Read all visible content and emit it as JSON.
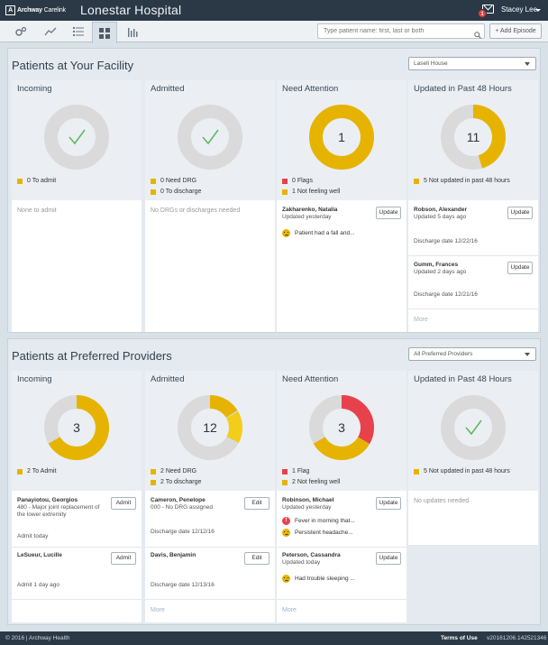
{
  "header": {
    "logo_brand": "Archway",
    "logo_product": "Carelink",
    "facility": "Lonestar Hospital",
    "mail_count": "1",
    "user": "Stacey Lee"
  },
  "toolbar": {
    "tools": [
      "gears-icon",
      "trend-icon",
      "list-icon",
      "grid-icon",
      "bar-chart-icon"
    ],
    "search_placeholder": "Type patient name: first, last or both",
    "add_episode": "+ Add Episode"
  },
  "facility_section": {
    "title": "Patients at Your Facility",
    "selector": "Lasell House",
    "incoming": {
      "title": "Incoming",
      "legend": "0 To admit",
      "empty": "None to admit"
    },
    "admitted": {
      "title": "Admitted",
      "legend": [
        "0 Need DRG",
        "0 To discharge"
      ],
      "empty": "No DRGs or discharges needed"
    },
    "attention": {
      "title": "Need Attention",
      "center": "1",
      "legend": [
        "0 Flags",
        "1 Not feeling well"
      ],
      "patient": {
        "name": "Zakharenko, Natalia",
        "updated": "Updated yesterday",
        "button": "Update",
        "note": "Patient had a fall and..."
      }
    },
    "updated": {
      "title": "Updated in Past 48 Hours",
      "center": "11",
      "legend": "5 Not updated in past 48 hours",
      "patients": [
        {
          "name": "Robson, Alexander",
          "updated": "Updated 5 days ago",
          "button": "Update",
          "discharge": "Discharge date 12/22/16"
        },
        {
          "name": "Gumm, Frances",
          "updated": "Updated 2 days ago",
          "button": "Update",
          "discharge": "Discharge date 12/21/16"
        }
      ],
      "more": "More"
    }
  },
  "providers_section": {
    "title": "Patients at Preferred Providers",
    "selector": "All Preferred Providers",
    "incoming": {
      "title": "Incoming",
      "center": "3",
      "legend": "2 To Admit",
      "patients": [
        {
          "name": "Panayiotou, Georgios",
          "detail": "480 - Major joint replacement of the lower extremity",
          "status": "Admit today",
          "button": "Admit"
        },
        {
          "name": "LeSueur, Lucille",
          "status": "Admit 1 day ago",
          "button": "Admit"
        }
      ]
    },
    "admitted": {
      "title": "Admitted",
      "center": "12",
      "legend": [
        "2 Need DRG",
        "2 To discharge"
      ],
      "patients": [
        {
          "name": "Cameron, Penelope",
          "detail": "000 - No DRG assigned",
          "discharge": "Discharge date 12/12/16",
          "button": "Edit"
        },
        {
          "name": "Davis, Benjamin",
          "discharge": "Discharge date 12/13/16",
          "button": "Edit"
        }
      ],
      "more": "More"
    },
    "attention": {
      "title": "Need Attention",
      "center": "3",
      "legend": [
        "1 Flag",
        "2 Not feeling well"
      ],
      "patients": [
        {
          "name": "Robinson, Michael",
          "updated": "Updated yesterday",
          "button": "Update",
          "notes": [
            "Fever in morning that...",
            "Persistent headache..."
          ]
        },
        {
          "name": "Peterson, Cassandra",
          "updated": "Updated today",
          "button": "Update",
          "notes": [
            "Had trouble sleeping ..."
          ]
        }
      ],
      "more": "More"
    },
    "updated": {
      "title": "Updated in Past 48 Hours",
      "legend": "5 Not updated in past 48 hours",
      "empty": "No updates needed"
    }
  },
  "footer": {
    "copyright": "© 2016 | Archway Health",
    "terms": "Terms of Use",
    "version": "v20161206.142521346"
  },
  "colors": {
    "yellow": "#e6b400",
    "red": "#e7424c",
    "gray": "#dadada",
    "green": "#5cb85c"
  }
}
